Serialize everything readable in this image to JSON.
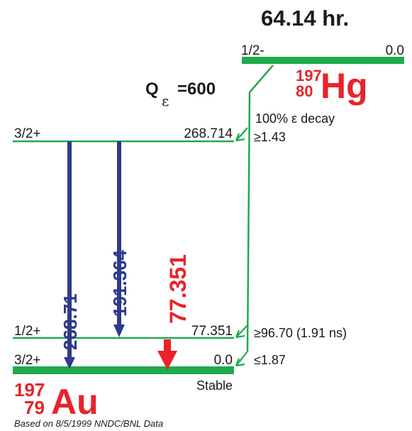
{
  "parent": {
    "half_life": "64.14 hr.",
    "spin_parity": "1/2-",
    "energy": "0.0",
    "mass_number": "197",
    "atomic_number": "80",
    "symbol": "Hg"
  },
  "q_value": {
    "label": "Q",
    "subscript": "ε",
    "value": "=600"
  },
  "decay_mode": "100% ε decay",
  "daughter": {
    "mass_number": "197",
    "atomic_number": "79",
    "symbol": "Au",
    "stable_label": "Stable"
  },
  "levels": [
    {
      "spin_parity": "3/2+",
      "energy": "268.714",
      "feeding": "≥1.43"
    },
    {
      "spin_parity": "1/2+",
      "energy": "77.351",
      "feeding": "≥96.70 (1.91 ns)"
    },
    {
      "spin_parity": "3/2+",
      "energy": "0.0",
      "feeding": "≤1.87"
    }
  ],
  "gammas": [
    {
      "energy": "268.71",
      "color": "#2e3a8c"
    },
    {
      "energy": "191.364",
      "color": "#2e3a8c"
    },
    {
      "energy": "77.351",
      "color": "#e8242b"
    }
  ],
  "colors": {
    "level_line": "#1faa4b",
    "nuclide_red": "#e8242b",
    "gamma_blue": "#2e3a8c",
    "text": "#1a1a1a"
  },
  "source_note": "Based on 8/5/1999 NNDC/BNL Data"
}
